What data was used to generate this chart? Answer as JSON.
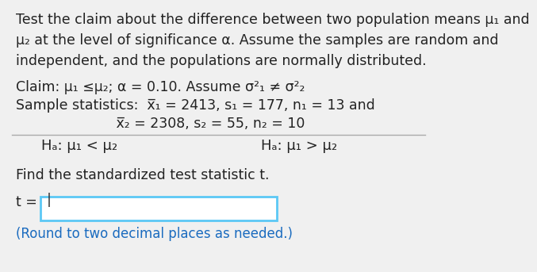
{
  "bg_color": "#f0f0f0",
  "line1": "Test the claim about the difference between two population means μ₁ and",
  "line2": "μ₂ at the level of significance α. Assume the samples are random and",
  "line3": "independent, and the populations are normally distributed.",
  "claim_line": "Claim: μ₁ ≤μ₂; α = 0.10. Assume σ²₁ ≠ σ²₂",
  "sample_line1": "Sample statistics:  x̅₁ = 2413, s₁ = 177, n₁ = 13 and",
  "sample_line2": "x̅₂ = 2308, s₂ = 55, n₂ = 10",
  "ha_left": "Hₐ: μ₁ < μ₂",
  "ha_right": "Hₐ: μ₁ > μ₂",
  "find_line": "Find the standardized test statistic t.",
  "t_label": "t = ",
  "round_note": "(Round to two decimal places as needed.)",
  "box_color": "#5bc8f5",
  "round_color": "#1a6bbf",
  "separator_color": "#aaaaaa",
  "text_color": "#222222",
  "font_size_body": 12.5,
  "font_size_note": 12.0
}
